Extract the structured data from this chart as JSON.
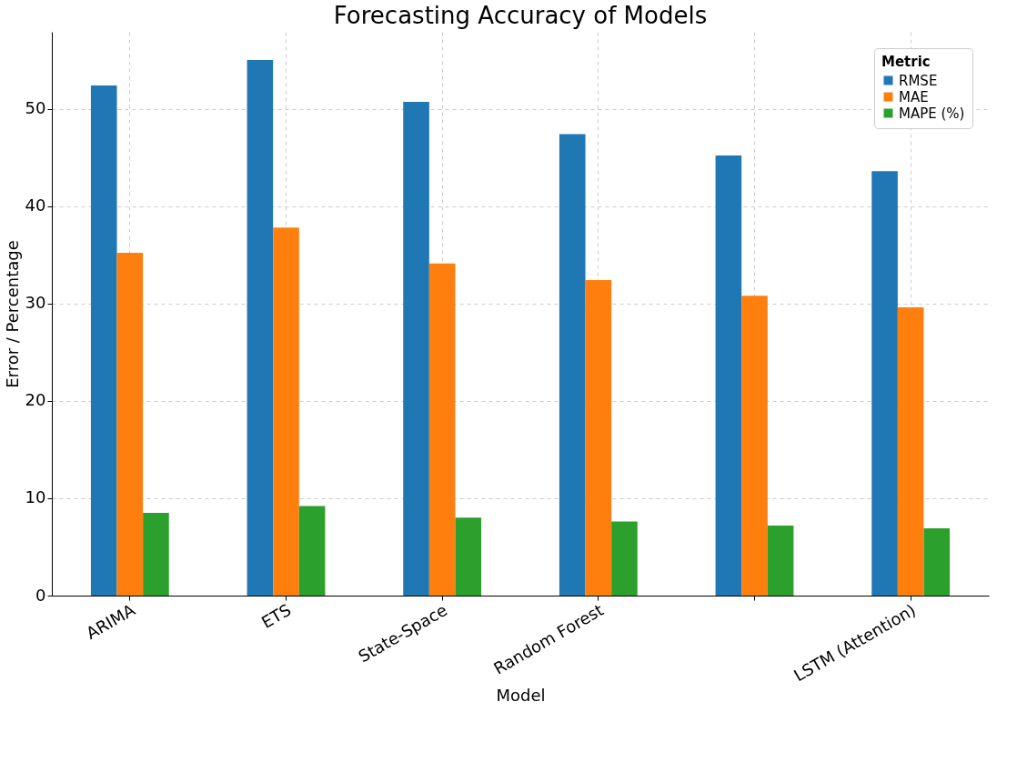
{
  "chart_data": {
    "type": "bar",
    "title": "Forecasting Accuracy of Models",
    "xlabel": "Model",
    "ylabel": "Error / Percentage",
    "legend_title": "Metric",
    "categories": [
      "ARIMA",
      "ETS",
      "State-Space",
      "Random Forest",
      null,
      "LSTM (Attention)"
    ],
    "series": [
      {
        "name": "RMSE",
        "color": "#1f77b4",
        "values": [
          52.4,
          55.0,
          50.7,
          47.4,
          45.2,
          43.6
        ]
      },
      {
        "name": "MAE",
        "color": "#ff7f0e",
        "values": [
          35.2,
          37.8,
          34.1,
          32.4,
          30.8,
          29.6
        ]
      },
      {
        "name": "MAPE (%)",
        "color": "#2ca02c",
        "values": [
          8.5,
          9.2,
          8.0,
          7.6,
          7.2,
          6.9
        ]
      }
    ],
    "ylim": [
      0,
      57.9
    ],
    "yticks": [
      0,
      10,
      20,
      30,
      40,
      50
    ],
    "grid": true,
    "legend": "top right"
  }
}
